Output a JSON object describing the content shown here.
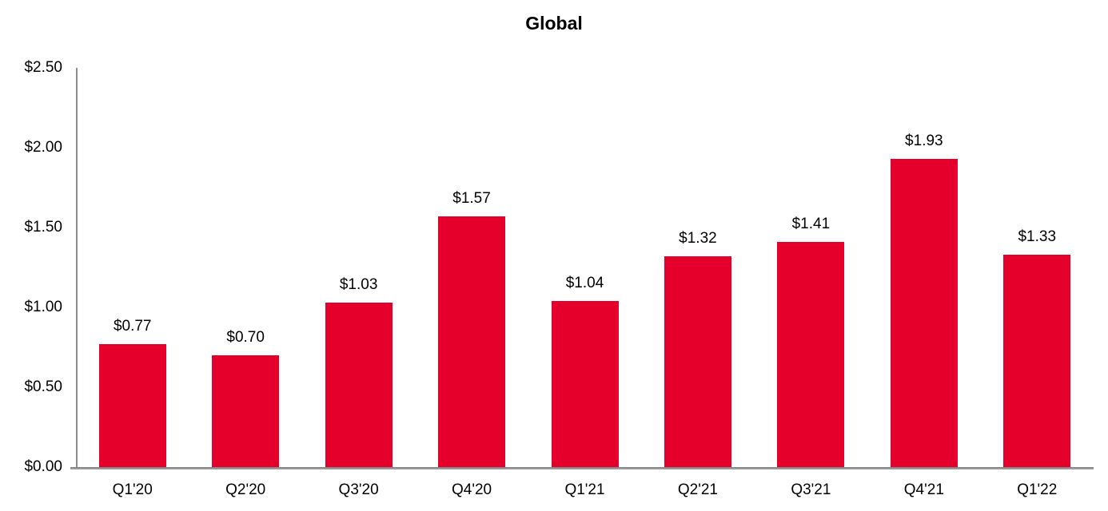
{
  "chart_data": {
    "type": "bar",
    "title": "Global",
    "categories": [
      "Q1'20",
      "Q2'20",
      "Q3'20",
      "Q4'20",
      "Q1'21",
      "Q2'21",
      "Q3'21",
      "Q4'21",
      "Q1'22"
    ],
    "values": [
      0.77,
      0.7,
      1.03,
      1.57,
      1.04,
      1.32,
      1.41,
      1.93,
      1.33
    ],
    "data_labels": [
      "$0.77",
      "$0.70",
      "$1.03",
      "$1.57",
      "$1.04",
      "$1.32",
      "$1.41",
      "$1.93",
      "$1.33"
    ],
    "yticks": [
      0,
      0.5,
      1.0,
      1.5,
      2.0,
      2.5
    ],
    "ytick_labels": [
      "$0.00",
      "$0.50",
      "$1.00",
      "$1.50",
      "$2.00",
      "$2.50"
    ],
    "ylim": [
      0,
      2.5
    ],
    "xlabel": "",
    "ylabel": "",
    "grid": false,
    "legend": false,
    "bar_color": "#e4002b",
    "axis_color": "#8c8c8c",
    "text_color": "#000000"
  }
}
